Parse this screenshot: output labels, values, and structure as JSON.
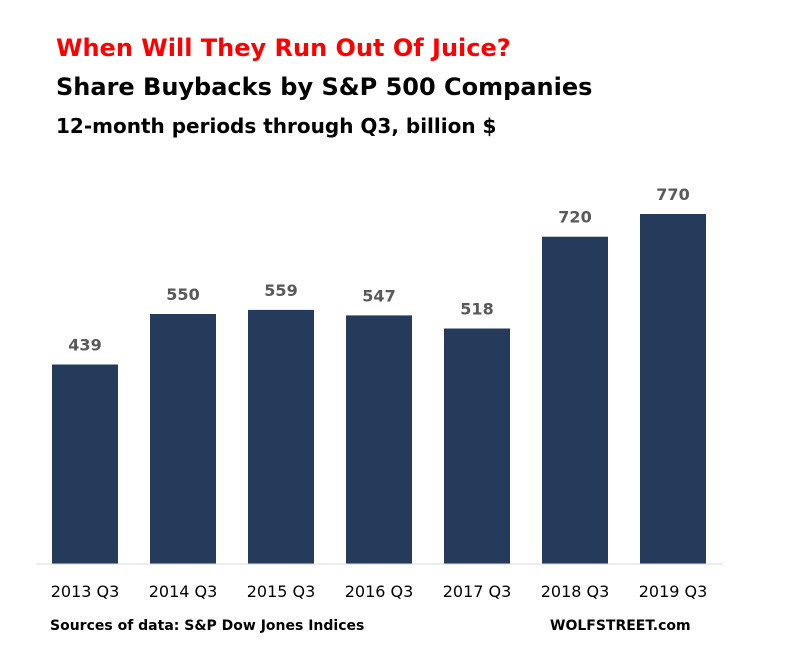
{
  "chart_data": {
    "type": "bar",
    "title": "When Will They Run Out Of Juice?",
    "subtitle": "Share Buybacks by S&P 500 Companies",
    "subtitle2": "12-month periods through Q3, billion $",
    "categories": [
      "2013 Q3",
      "2014 Q3",
      "2015 Q3",
      "2016 Q3",
      "2017 Q3",
      "2018 Q3",
      "2019 Q3"
    ],
    "values": [
      439,
      550,
      559,
      547,
      518,
      720,
      770
    ],
    "value_labels": [
      "439",
      "550",
      "559",
      "547",
      "518",
      "720",
      "770"
    ],
    "xlabel": "",
    "ylabel": "",
    "ylim": [
      0,
      800
    ],
    "grid": false,
    "legend": "none",
    "bar_color": "#243B5C",
    "title_color": "#FF0000",
    "value_label_color": "#595959"
  },
  "footer": {
    "source": "Sources of data: S&P Dow Jones Indices",
    "credit": "WOLFSTREET.com"
  }
}
